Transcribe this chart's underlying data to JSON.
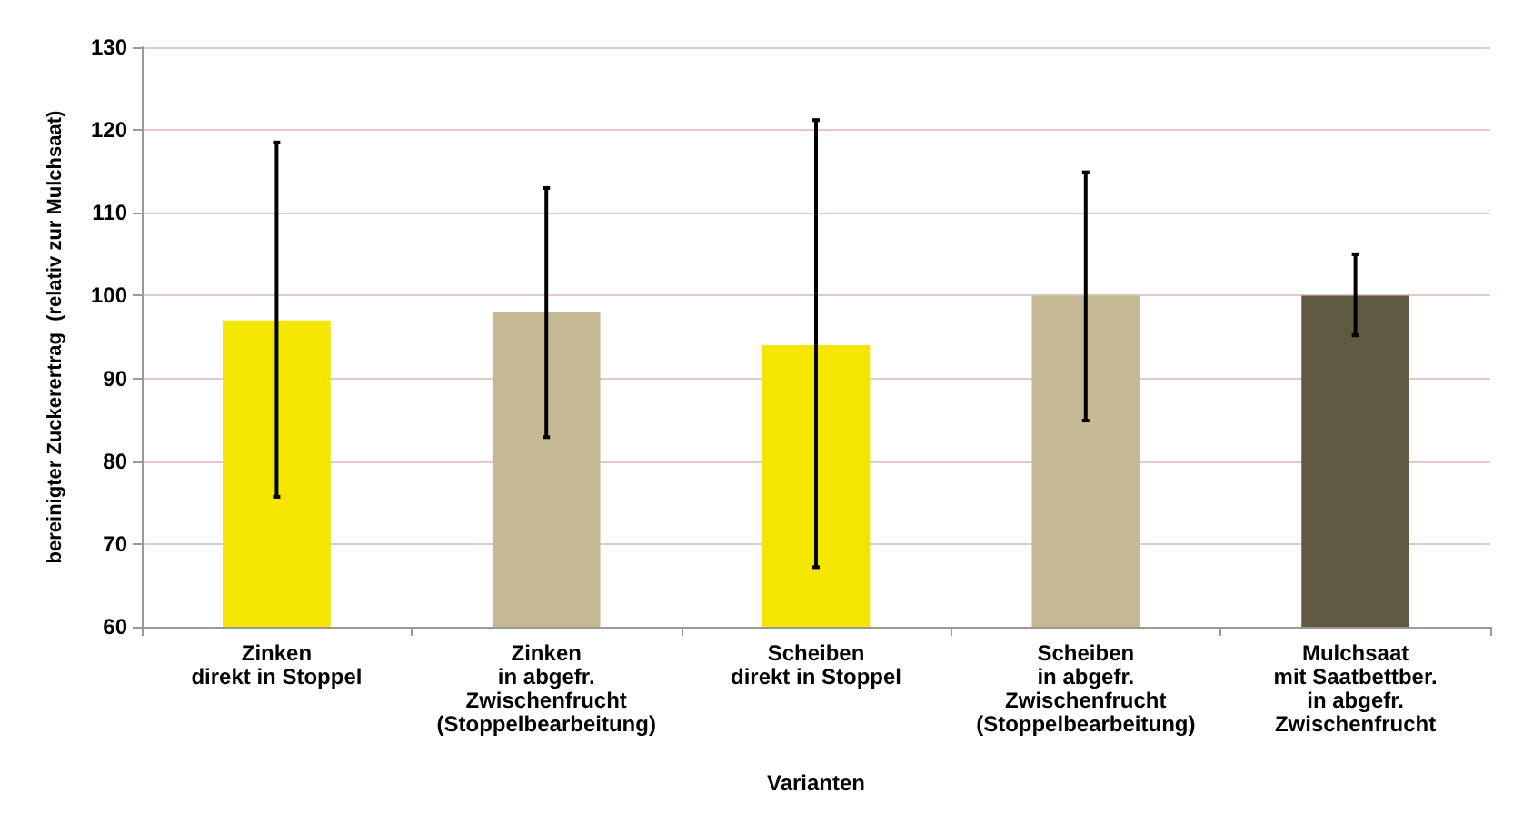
{
  "chart_data": {
    "type": "bar",
    "xlabel": "Varianten",
    "ylabel": "bereinigter Zuckerertrag  (relativ zur Mulchsaat)",
    "categories": [
      "Zinken\ndirekt in Stoppel",
      "Zinken\nin abgefr.\nZwischenfrucht\n(Stoppelbearbeitung)",
      "Scheiben\ndirekt in Stoppel",
      "Scheiben\nin abgefr.\nZwischenfrucht\n(Stoppelbearbeitung)",
      "Mulchsaat\nmit Saatbettber.\nin abgefr.\nZwischenfrucht"
    ],
    "values": [
      97,
      98,
      94,
      100,
      100
    ],
    "colors": [
      "#f5e600",
      "#c4b993",
      "#f5e600",
      "#c4b993",
      "#615a42"
    ],
    "errors": [
      [
        75.7,
        118.5
      ],
      [
        82.9,
        113
      ],
      [
        67.2,
        121.2
      ],
      [
        84.9,
        114.9
      ],
      [
        95.2,
        105
      ]
    ],
    "ylim": [
      60,
      130
    ],
    "yticks": [
      60,
      70,
      80,
      90,
      100,
      110,
      120,
      130
    ],
    "grid": "y"
  }
}
